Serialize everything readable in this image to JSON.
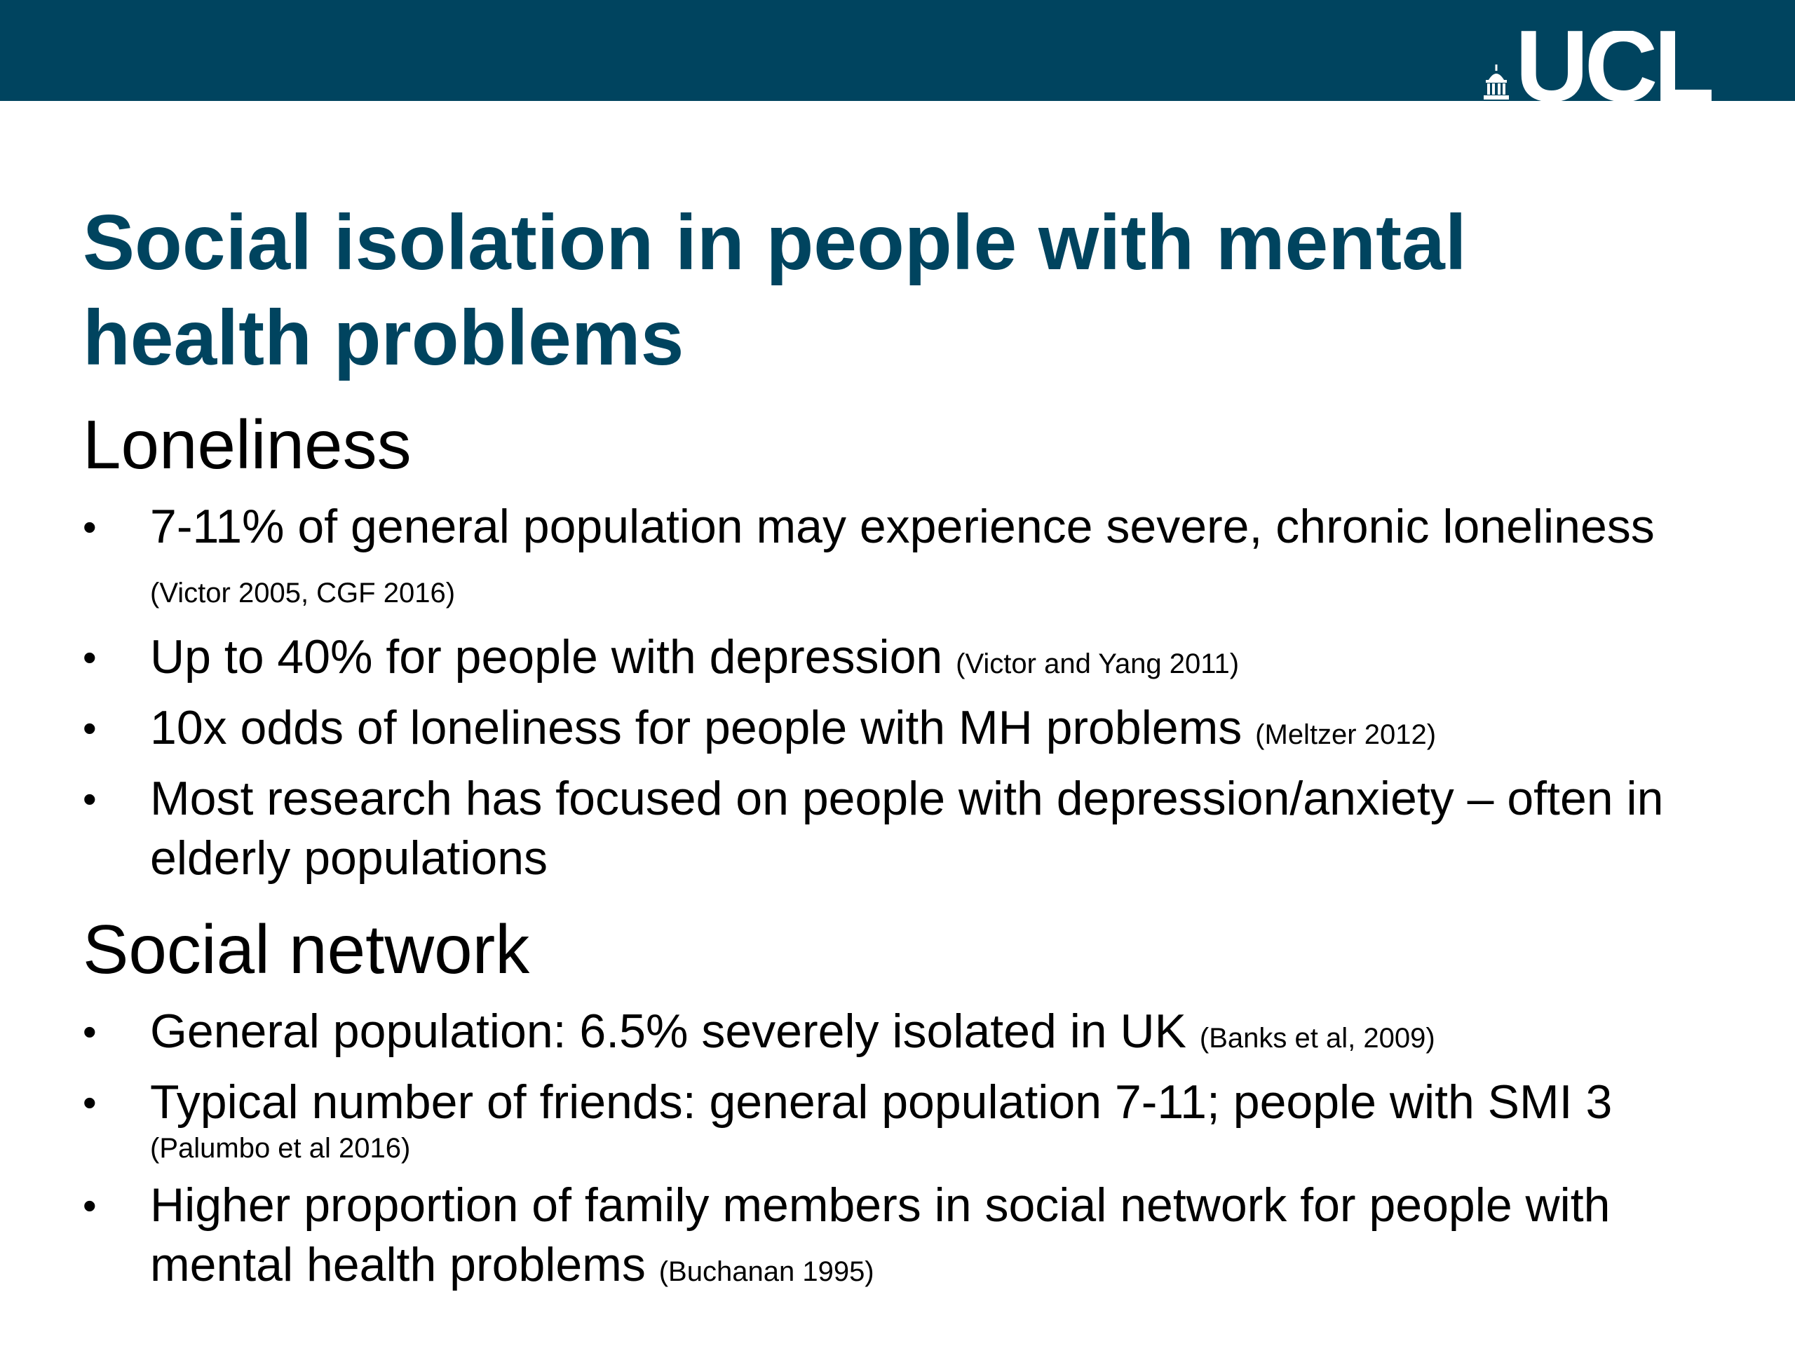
{
  "header": {
    "logo_text": "UCL",
    "logo_icon": "portico-icon",
    "bar_color": "#00445f"
  },
  "title": "Social isolation in people with mental health problems",
  "sections": [
    {
      "heading": "Loneliness",
      "bullets": [
        {
          "text": "7-11% of general population may experience severe, chronic loneliness",
          "cite": "(Victor 2005, CGF 2016)"
        },
        {
          "text": "Up to 40% for people with depression",
          "cite": "(Victor and Yang 2011)"
        },
        {
          "text": "10x odds of loneliness for people with MH problems",
          "cite": "(Meltzer 2012)"
        },
        {
          "text": "Most research has focused on people with depression/anxiety – often in elderly populations",
          "cite": ""
        }
      ]
    },
    {
      "heading": "Social network",
      "bullets": [
        {
          "text": "General population: 6.5% severely isolated in UK",
          "cite": "(Banks et al, 2009)"
        },
        {
          "text": "Typical number of friends: general population 7-11; people with SMI 3",
          "cite": "(Palumbo et al 2016)"
        },
        {
          "text": "Higher proportion of family members in social network for people with mental health problems",
          "cite": "(Buchanan 1995)"
        }
      ]
    }
  ]
}
